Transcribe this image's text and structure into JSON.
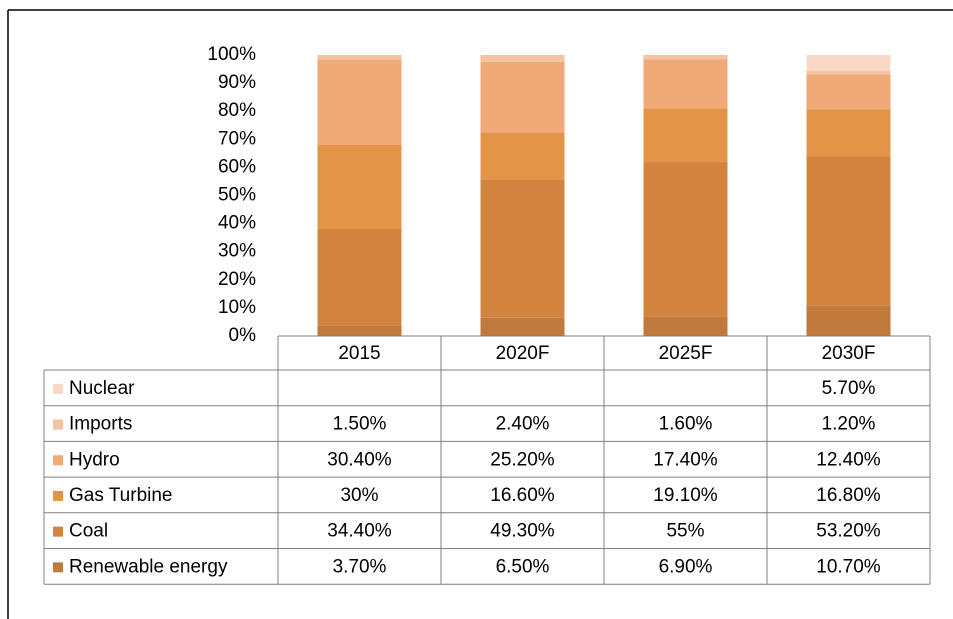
{
  "chart_data": {
    "type": "stacked_bar",
    "categories": [
      "2015",
      "2020F",
      "2025F",
      "2030F"
    ],
    "ylim": [
      0,
      100
    ],
    "yticks": [
      {
        "value": 0,
        "label": "0%"
      },
      {
        "value": 10,
        "label": "10%"
      },
      {
        "value": 20,
        "label": "20%"
      },
      {
        "value": 30,
        "label": "30%"
      },
      {
        "value": 40,
        "label": "40%"
      },
      {
        "value": 50,
        "label": "50%"
      },
      {
        "value": 60,
        "label": "60%"
      },
      {
        "value": 70,
        "label": "70%"
      },
      {
        "value": 80,
        "label": "80%"
      },
      {
        "value": 90,
        "label": "90%"
      },
      {
        "value": 100,
        "label": "100%"
      }
    ],
    "series": [
      {
        "name": "Renewable energy",
        "color": "#c17a3c",
        "values": [
          3.7,
          6.5,
          6.9,
          10.7
        ],
        "value_labels": [
          "3.70%",
          "6.50%",
          "6.90%",
          "10.70%"
        ]
      },
      {
        "name": "Coal",
        "color": "#d2843e",
        "values": [
          34.4,
          49.3,
          55,
          53.2
        ],
        "value_labels": [
          "34.40%",
          "49.30%",
          "55%",
          "53.20%"
        ]
      },
      {
        "name": "Gas Turbine",
        "color": "#e49447",
        "values": [
          30,
          16.6,
          19.1,
          16.8
        ],
        "value_labels": [
          "30%",
          "16.60%",
          "19.10%",
          "16.80%"
        ]
      },
      {
        "name": "Hydro",
        "color": "#f0aa78",
        "values": [
          30.4,
          25.2,
          17.4,
          12.4
        ],
        "value_labels": [
          "30.40%",
          "25.20%",
          "17.40%",
          "12.40%"
        ]
      },
      {
        "name": "Imports",
        "color": "#f5c3a3",
        "values": [
          1.5,
          2.4,
          1.6,
          1.2
        ],
        "value_labels": [
          "1.50%",
          "2.40%",
          "1.60%",
          "1.20%"
        ]
      },
      {
        "name": "Nuclear",
        "color": "#f9d8c7",
        "values": [
          null,
          null,
          null,
          5.7
        ],
        "value_labels": [
          null,
          null,
          null,
          "5.70%"
        ]
      }
    ]
  }
}
